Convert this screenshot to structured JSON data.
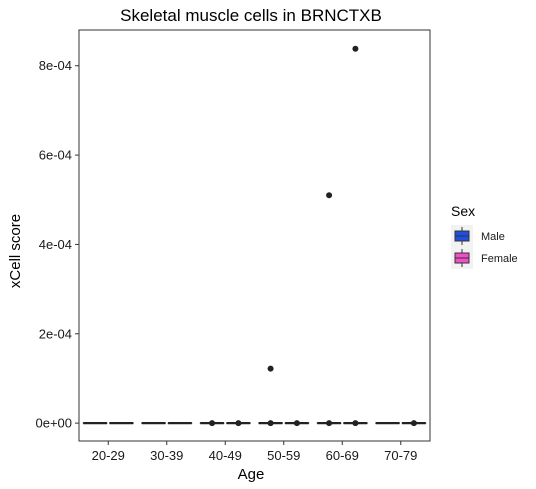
{
  "chart_data": {
    "type": "box",
    "title": "Skeletal muscle cells in BRNCTXB",
    "xlabel": "Age",
    "ylabel": "xCell score",
    "categories": [
      "20-29",
      "30-39",
      "40-49",
      "50-59",
      "60-69",
      "70-79"
    ],
    "ylim": [
      -4e-05,
      0.00088
    ],
    "yticks": [
      0,
      0.0002,
      0.0004,
      0.0006,
      0.0008
    ],
    "ytick_labels": [
      "0e+00",
      "2e-04",
      "4e-04",
      "6e-04",
      "8e-04"
    ],
    "grid": false,
    "legend": {
      "title": "Sex",
      "position": "right"
    },
    "series": [
      {
        "name": "Male",
        "color": "#1f4fe0",
        "boxes": [
          {
            "category": "20-29",
            "min": 0,
            "q1": 0,
            "median": 0,
            "q3": 0,
            "max": 0,
            "outliers": []
          },
          {
            "category": "30-39",
            "min": 0,
            "q1": 0,
            "median": 0,
            "q3": 0,
            "max": 0,
            "outliers": []
          },
          {
            "category": "40-49",
            "min": 0,
            "q1": 0,
            "median": 0,
            "q3": 0,
            "max": 0,
            "outliers": [
              0
            ]
          },
          {
            "category": "50-59",
            "min": 0,
            "q1": 0,
            "median": 0,
            "q3": 0,
            "max": 0,
            "outliers": [
              0,
              0.000122
            ]
          },
          {
            "category": "60-69",
            "min": 0,
            "q1": 0,
            "median": 0,
            "q3": 0,
            "max": 0,
            "outliers": [
              0,
              0.00051
            ]
          },
          {
            "category": "70-79",
            "min": 0,
            "q1": 0,
            "median": 0,
            "q3": 0,
            "max": 0,
            "outliers": []
          }
        ]
      },
      {
        "name": "Female",
        "color": "#f04fc8",
        "boxes": [
          {
            "category": "20-29",
            "min": 0,
            "q1": 0,
            "median": 0,
            "q3": 0,
            "max": 0,
            "outliers": []
          },
          {
            "category": "30-39",
            "min": 0,
            "q1": 0,
            "median": 0,
            "q3": 0,
            "max": 0,
            "outliers": []
          },
          {
            "category": "40-49",
            "min": 0,
            "q1": 0,
            "median": 0,
            "q3": 0,
            "max": 0,
            "outliers": [
              0
            ]
          },
          {
            "category": "50-59",
            "min": 0,
            "q1": 0,
            "median": 0,
            "q3": 0,
            "max": 0,
            "outliers": [
              0
            ]
          },
          {
            "category": "60-69",
            "min": 0,
            "q1": 0,
            "median": 0,
            "q3": 0,
            "max": 0,
            "outliers": [
              0,
              0.000838
            ]
          },
          {
            "category": "70-79",
            "min": 0,
            "q1": 0,
            "median": 0,
            "q3": 0,
            "max": 0,
            "outliers": [
              0
            ]
          }
        ]
      }
    ]
  }
}
